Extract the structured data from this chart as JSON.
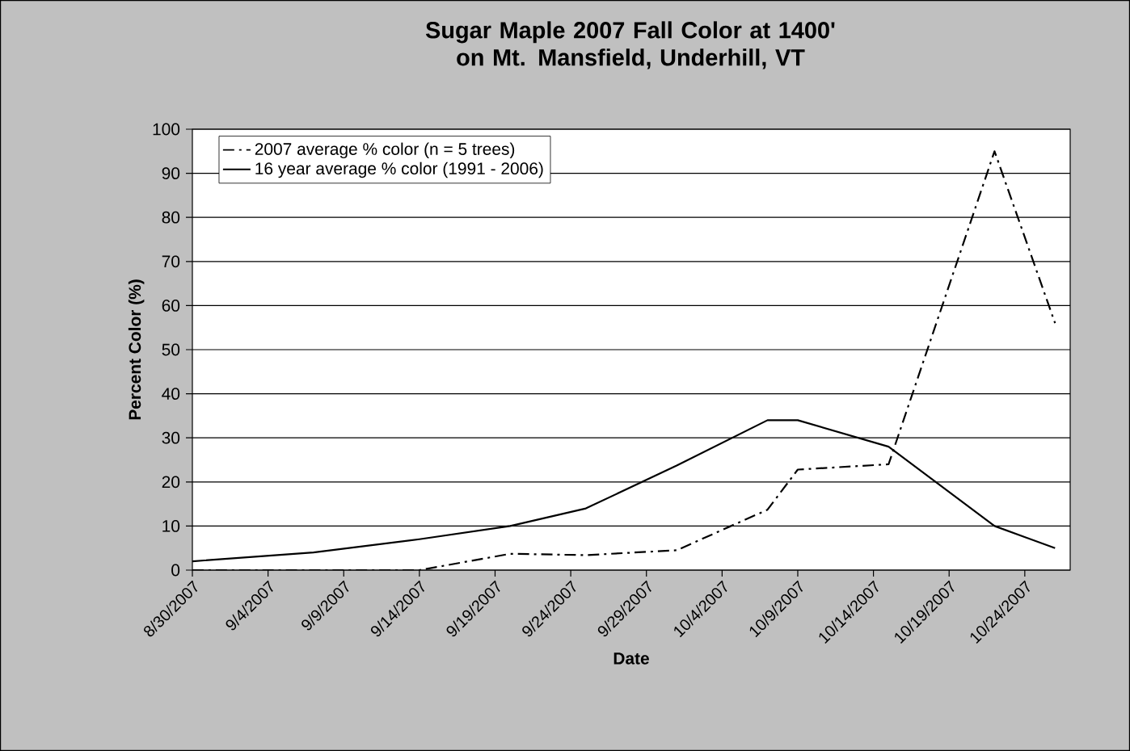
{
  "chart_data": {
    "type": "line",
    "title": "Sugar Maple 2007 Fall Color at 1400' on Mt. Mansfield, Underhill, VT",
    "xlabel": "Date",
    "ylabel": "Percent Color (%)",
    "series": [
      {
        "name": "2007 average % color (n = 5 trees)",
        "color": "#000000",
        "line_style": "dashed",
        "x": [
          "2007-08-30",
          "2007-09-07",
          "2007-09-14",
          "2007-09-20",
          "2007-09-25",
          "2007-10-01",
          "2007-10-07",
          "2007-10-09",
          "2007-10-15",
          "2007-10-22",
          "2007-10-26"
        ],
        "values": [
          0,
          0,
          0,
          3.7,
          3.4,
          4.5,
          13.7,
          22.8,
          24,
          95,
          56
        ]
      },
      {
        "name": "16 year average % color (1991 - 2006)",
        "color": "#000000",
        "line_style": "solid",
        "x": [
          "2007-08-30",
          "2007-09-07",
          "2007-09-14",
          "2007-09-20",
          "2007-09-25",
          "2007-10-01",
          "2007-10-07",
          "2007-10-09",
          "2007-10-15",
          "2007-10-22",
          "2007-10-26"
        ],
        "values": [
          2,
          4,
          7,
          10,
          14,
          23.7,
          34,
          34,
          28,
          10,
          5
        ]
      }
    ],
    "xlim": [
      "2007-08-30",
      "2007-10-27"
    ],
    "xticks": [
      {
        "value": "2007-08-30",
        "label": "8/30/2007"
      },
      {
        "value": "2007-09-04",
        "label": "9/4/2007"
      },
      {
        "value": "2007-09-09",
        "label": "9/9/2007"
      },
      {
        "value": "2007-09-14",
        "label": "9/14/2007"
      },
      {
        "value": "2007-09-19",
        "label": "9/19/2007"
      },
      {
        "value": "2007-09-24",
        "label": "9/24/2007"
      },
      {
        "value": "2007-09-29",
        "label": "9/29/2007"
      },
      {
        "value": "2007-10-04",
        "label": "10/4/2007"
      },
      {
        "value": "2007-10-09",
        "label": "10/9/2007"
      },
      {
        "value": "2007-10-14",
        "label": "10/14/2007"
      },
      {
        "value": "2007-10-19",
        "label": "10/19/2007"
      },
      {
        "value": "2007-10-24",
        "label": "10/24/2007"
      }
    ],
    "ylim": [
      0,
      100
    ],
    "yticks": [
      0,
      10,
      20,
      30,
      40,
      50,
      60,
      70,
      80,
      90,
      100
    ],
    "grid": "y",
    "legend": "top left",
    "marker": "none"
  }
}
